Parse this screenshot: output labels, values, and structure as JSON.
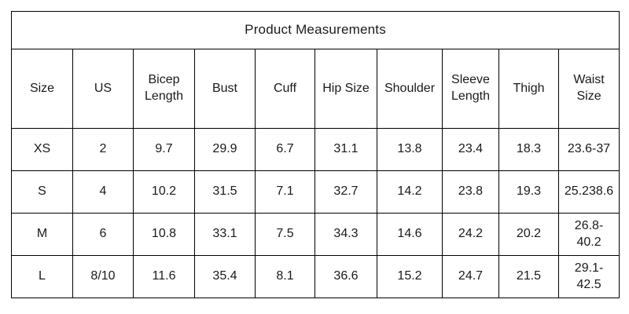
{
  "title": "Product Measurements",
  "table": {
    "columns": [
      "Size",
      "US",
      "Bicep\nLength",
      "Bust",
      "Cuff",
      "Hip Size",
      "Shoulder",
      "Sleeve\nLength",
      "Thigh",
      "Waist\nSize"
    ],
    "rows": [
      [
        "XS",
        "2",
        "9.7",
        "29.9",
        "6.7",
        "31.1",
        "13.8",
        "23.4",
        "18.3",
        "23.6-37"
      ],
      [
        "S",
        "4",
        "10.2",
        "31.5",
        "7.1",
        "32.7",
        "14.2",
        "23.8",
        "19.3",
        "25.238.6"
      ],
      [
        "M",
        "6",
        "10.8",
        "33.1",
        "7.5",
        "34.3",
        "14.6",
        "24.2",
        "20.2",
        "26.8-\n40.2"
      ],
      [
        "L",
        "8/10",
        "11.6",
        "35.4",
        "8.1",
        "36.6",
        "15.2",
        "24.7",
        "21.5",
        "29.1-\n42.5"
      ]
    ]
  },
  "colors": {
    "border": "#000000",
    "text": "#1a1a1a",
    "background": "#ffffff"
  }
}
